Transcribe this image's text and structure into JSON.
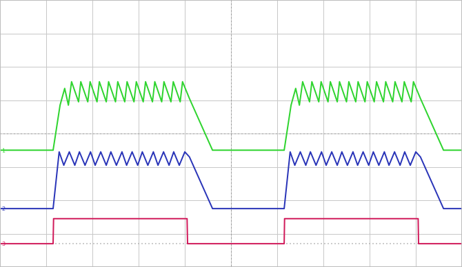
{
  "chart_data": {
    "type": "line",
    "title": "",
    "xlabel": "",
    "ylabel": "",
    "grid": true,
    "grid_divisions": {
      "x": 10,
      "y": 8
    },
    "xlim": [
      0,
      10
    ],
    "ylim": [
      0,
      8
    ],
    "colors": {
      "ch1": "#2fd42f",
      "ch2": "#2a35b8",
      "ch3": "#d01a5a",
      "grid": "#c8c8c8"
    },
    "series": [
      {
        "channel": "ch1",
        "marker": "1",
        "baseline_level": 3.5,
        "x": [
          0.0,
          1.15,
          1.3,
          1.4,
          1.48,
          1.55,
          1.7,
          1.75,
          1.9,
          1.95,
          2.1,
          2.15,
          2.3,
          2.35,
          2.5,
          2.55,
          2.7,
          2.75,
          2.9,
          2.95,
          3.1,
          3.15,
          3.3,
          3.35,
          3.5,
          3.55,
          3.7,
          3.75,
          3.9,
          3.95,
          4.1,
          4.6,
          6.15,
          6.3,
          6.4,
          6.48,
          6.55,
          6.7,
          6.75,
          6.9,
          6.95,
          7.1,
          7.15,
          7.3,
          7.35,
          7.5,
          7.55,
          7.7,
          7.75,
          7.9,
          7.95,
          8.1,
          8.15,
          8.3,
          8.35,
          8.5,
          8.55,
          8.7,
          8.75,
          8.9,
          8.95,
          9.1,
          9.6,
          10.0
        ],
        "y": [
          3.5,
          3.5,
          4.85,
          5.35,
          4.85,
          5.55,
          4.95,
          5.55,
          4.95,
          5.55,
          4.95,
          5.55,
          4.95,
          5.55,
          4.95,
          5.55,
          4.95,
          5.55,
          4.95,
          5.55,
          4.95,
          5.55,
          4.95,
          5.55,
          4.95,
          5.55,
          4.95,
          5.55,
          4.95,
          5.55,
          5.05,
          3.5,
          3.5,
          4.85,
          5.35,
          4.85,
          5.55,
          4.95,
          5.55,
          4.95,
          5.55,
          4.95,
          5.55,
          4.95,
          5.55,
          4.95,
          5.55,
          4.95,
          5.55,
          4.95,
          5.55,
          4.95,
          5.55,
          4.95,
          5.55,
          4.95,
          5.55,
          4.95,
          5.55,
          4.95,
          5.55,
          5.05,
          3.5,
          3.5
        ]
      },
      {
        "channel": "ch2",
        "marker": "2",
        "baseline_level": 1.75,
        "x": [
          0.0,
          1.15,
          1.28,
          1.38,
          1.5,
          1.62,
          1.72,
          1.84,
          1.96,
          2.06,
          2.18,
          2.3,
          2.4,
          2.52,
          2.64,
          2.74,
          2.86,
          2.98,
          3.08,
          3.2,
          3.32,
          3.42,
          3.54,
          3.66,
          3.76,
          3.88,
          4.0,
          4.1,
          4.6,
          6.15,
          6.28,
          6.38,
          6.5,
          6.62,
          6.72,
          6.84,
          6.96,
          7.06,
          7.18,
          7.3,
          7.4,
          7.52,
          7.64,
          7.74,
          7.86,
          7.98,
          8.08,
          8.2,
          8.32,
          8.42,
          8.54,
          8.66,
          8.76,
          8.88,
          9.0,
          9.1,
          9.6,
          10.0
        ],
        "y": [
          1.75,
          1.75,
          3.45,
          3.05,
          3.45,
          3.05,
          3.45,
          3.05,
          3.45,
          3.05,
          3.45,
          3.05,
          3.45,
          3.05,
          3.45,
          3.05,
          3.45,
          3.05,
          3.45,
          3.05,
          3.45,
          3.05,
          3.45,
          3.05,
          3.45,
          3.05,
          3.45,
          3.3,
          1.75,
          1.75,
          3.45,
          3.05,
          3.45,
          3.05,
          3.45,
          3.05,
          3.45,
          3.05,
          3.45,
          3.05,
          3.45,
          3.05,
          3.45,
          3.05,
          3.45,
          3.05,
          3.45,
          3.05,
          3.45,
          3.05,
          3.45,
          3.05,
          3.45,
          3.05,
          3.45,
          3.3,
          1.75,
          1.75
        ]
      },
      {
        "channel": "ch3",
        "marker": "3",
        "baseline_level": 0.7,
        "x": [
          0.0,
          1.15,
          1.16,
          4.05,
          4.06,
          6.15,
          6.16,
          9.05,
          9.06,
          10.0
        ],
        "y": [
          0.7,
          0.7,
          1.45,
          1.45,
          0.7,
          0.7,
          1.45,
          1.45,
          0.7,
          0.7
        ]
      }
    ]
  }
}
